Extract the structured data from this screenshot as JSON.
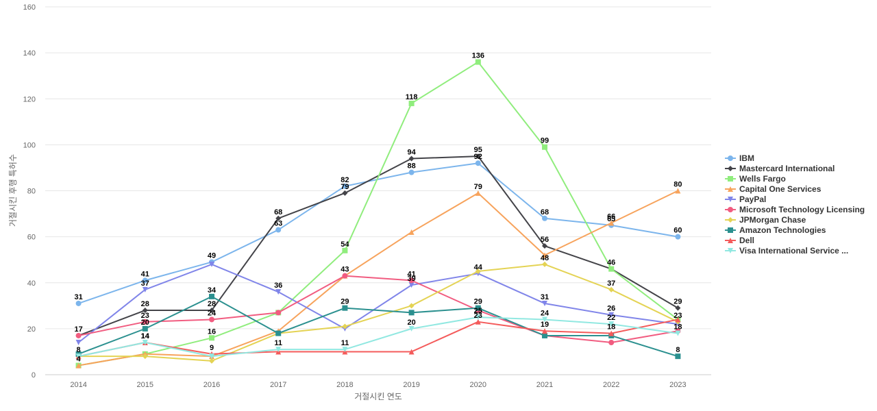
{
  "chart_data": {
    "type": "line",
    "title": "",
    "xlabel": "거절시킨 연도",
    "ylabel": "거절시킨 후행 특허수",
    "ylim": [
      0,
      160
    ],
    "yticks": [
      0,
      20,
      40,
      60,
      80,
      100,
      120,
      140,
      160
    ],
    "categories": [
      "2014",
      "2015",
      "2016",
      "2017",
      "2018",
      "2019",
      "2020",
      "2021",
      "2022",
      "2023"
    ],
    "grid": true,
    "legend_position": "right",
    "series": [
      {
        "name": "IBM",
        "color": "#7cb5ec",
        "marker": "circle",
        "values": [
          31,
          41,
          49,
          63,
          82,
          88,
          92,
          68,
          65,
          60
        ]
      },
      {
        "name": "Mastercard International",
        "color": "#434348",
        "marker": "diamond",
        "values": [
          17,
          28,
          28,
          68,
          79,
          94,
          95,
          56,
          46,
          29
        ]
      },
      {
        "name": "Wells Fargo",
        "color": "#90ed7d",
        "marker": "square",
        "values": [
          4,
          9,
          16,
          27,
          54,
          118,
          136,
          99,
          46,
          24
        ]
      },
      {
        "name": "Capital One Services",
        "color": "#f7a35c",
        "marker": "triangle",
        "values": [
          4,
          9,
          8,
          19,
          43,
          62,
          79,
          52,
          66,
          80
        ]
      },
      {
        "name": "PayPal",
        "color": "#8085e9",
        "marker": "triangle-down",
        "values": [
          14,
          37,
          48,
          36,
          20,
          39,
          44,
          31,
          26,
          22
        ]
      },
      {
        "name": "Microsoft Technology Licensing",
        "color": "#f15c80",
        "marker": "circle",
        "values": [
          17,
          23,
          24,
          27,
          43,
          41,
          28,
          17,
          14,
          19
        ]
      },
      {
        "name": "JPMorgan Chase",
        "color": "#e4d354",
        "marker": "diamond",
        "values": [
          8,
          8,
          6,
          18,
          21,
          30,
          45,
          48,
          37,
          23
        ]
      },
      {
        "name": "Amazon Technologies",
        "color": "#2b908f",
        "marker": "square",
        "values": [
          9,
          20,
          34,
          18,
          29,
          27,
          29,
          17,
          17,
          8
        ]
      },
      {
        "name": "Dell",
        "color": "#f45b5b",
        "marker": "triangle",
        "values": [
          8,
          14,
          9,
          10,
          10,
          10,
          23,
          19,
          18,
          24
        ]
      },
      {
        "name": "Visa International Service ...",
        "color": "#91e8e1",
        "marker": "triangle-down",
        "values": [
          8,
          14,
          8,
          11,
          11,
          20,
          25,
          24,
          22,
          18
        ]
      }
    ],
    "data_labels": [
      {
        "series": 0,
        "points": [
          0,
          1,
          2,
          3,
          4,
          5,
          6,
          7,
          8,
          9
        ]
      },
      {
        "series": 1,
        "points": [
          0,
          1,
          2,
          3,
          4,
          5,
          6,
          7,
          8,
          9
        ]
      },
      {
        "series": 2,
        "points": [
          2,
          4,
          5,
          6,
          7
        ]
      },
      {
        "series": 3,
        "points": [
          0,
          6,
          8,
          9
        ]
      },
      {
        "series": 4,
        "points": [
          1,
          3,
          5,
          6,
          7,
          8
        ]
      },
      {
        "series": 5,
        "points": [
          1,
          2,
          4,
          5
        ]
      },
      {
        "series": 6,
        "points": [
          7,
          8,
          9
        ]
      },
      {
        "series": 7,
        "points": [
          1,
          2,
          4,
          6,
          9
        ]
      },
      {
        "series": 8,
        "points": [
          0,
          1,
          2,
          6,
          7,
          8
        ]
      },
      {
        "series": 9,
        "points": [
          1,
          3,
          4,
          5,
          6,
          7,
          8,
          9
        ]
      }
    ]
  }
}
